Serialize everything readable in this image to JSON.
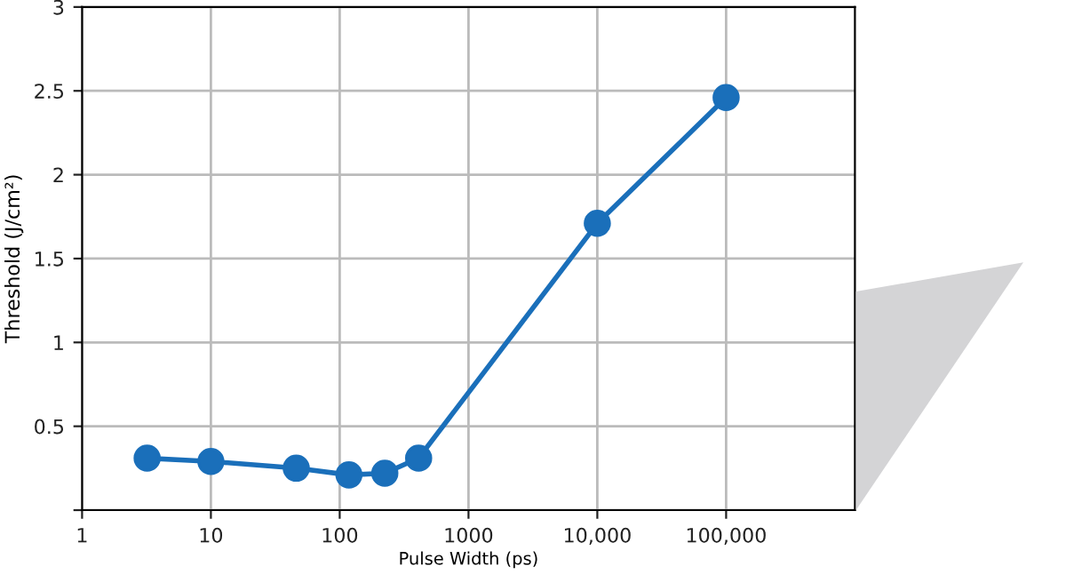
{
  "chart_data": {
    "type": "line",
    "xlabel": "Pulse Width (ps)",
    "ylabel": "Threshold (J/cm²)",
    "x": [
      3.2,
      10,
      46,
      118,
      224,
      410,
      10000,
      100000
    ],
    "series": [
      {
        "color": "#1a6fba",
        "values": [
          0.31,
          0.29,
          0.25,
          0.21,
          0.22,
          0.31,
          1.71,
          2.46
        ]
      }
    ],
    "log": "x",
    "xlim": [
      1,
      1000000
    ],
    "xticks": [
      1,
      10,
      100,
      1000,
      {
        "value": 10000,
        "label": "10,000"
      },
      {
        "value": 100000,
        "label": "100,000"
      }
    ],
    "ylim": [
      0,
      3
    ],
    "yticks": [
      {
        "value": 0,
        "label": null
      },
      0.5,
      1,
      1.5,
      2,
      2.5,
      3
    ],
    "grid": true,
    "marker": "circle",
    "line_style": "solid"
  }
}
